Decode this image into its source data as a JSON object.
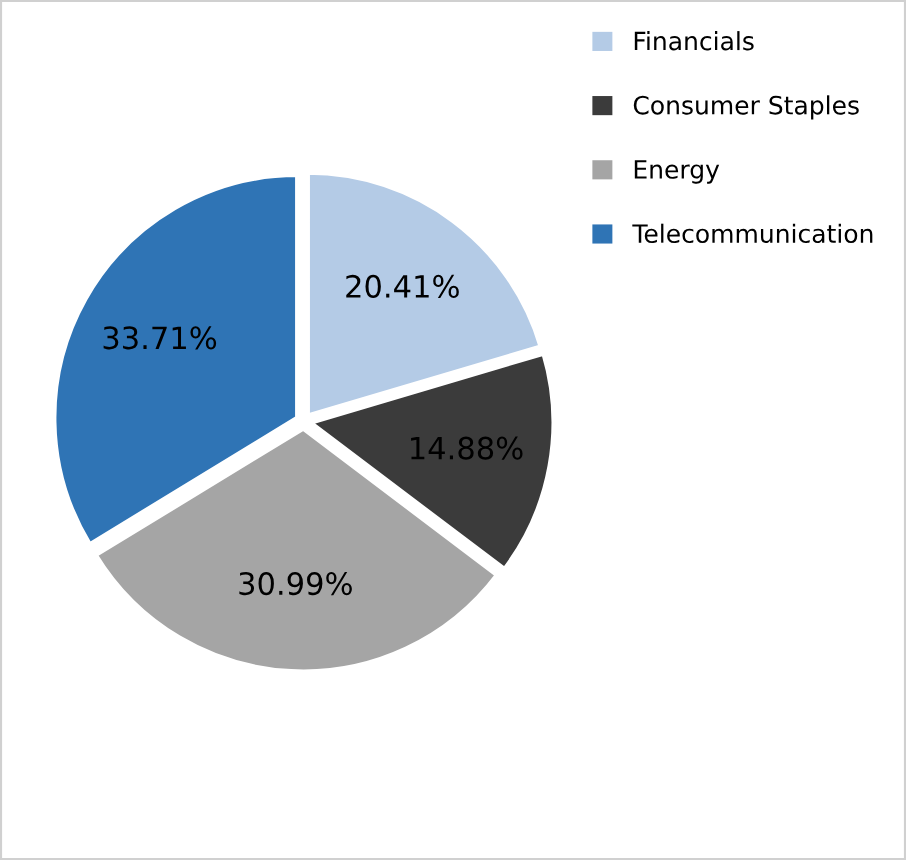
{
  "chart_data": {
    "type": "pie",
    "categories": [
      "Financials",
      "Consumer Staples",
      "Energy",
      "Telecommunication"
    ],
    "values": [
      20.41,
      14.88,
      30.99,
      33.71
    ],
    "colors": [
      "#b4cbe6",
      "#3b3b3b",
      "#a5a5a5",
      "#2f74b5"
    ],
    "value_labels": [
      "20.41%",
      "14.88%",
      "30.99%",
      "33.71%"
    ],
    "legend": "top right"
  }
}
